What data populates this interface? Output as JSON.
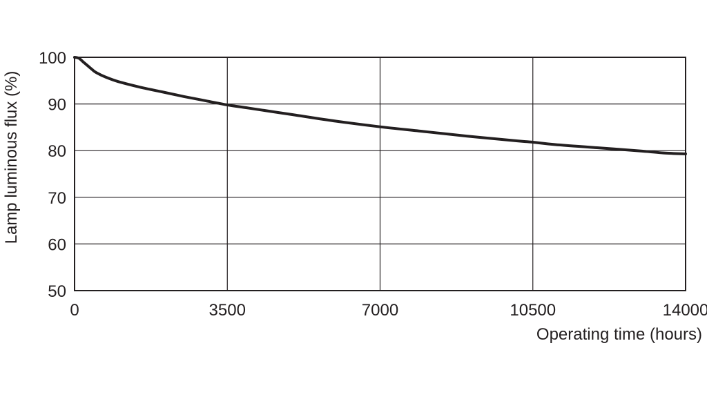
{
  "chart_data": {
    "type": "line",
    "title": "",
    "xlabel": "Operating time (hours)",
    "ylabel": "Lamp luminous flux (%)",
    "xlim": [
      0,
      14000
    ],
    "ylim": [
      50,
      100
    ],
    "x_ticks": [
      "0",
      "3500",
      "7000",
      "10500",
      "14000"
    ],
    "y_ticks": [
      "100",
      "90",
      "80",
      "70",
      "60",
      "50"
    ],
    "x_tick_values": [
      0,
      3500,
      7000,
      10500,
      14000
    ],
    "y_tick_values": [
      100,
      90,
      80,
      70,
      60,
      50
    ],
    "grid": true,
    "series": [
      {
        "color": "#231f20",
        "x": [
          0,
          100,
          200,
          300,
          400,
          500,
          700,
          1000,
          1500,
          2000,
          2500,
          3000,
          3500,
          4000,
          5000,
          6000,
          7000,
          8000,
          9000,
          10000,
          10500,
          11000,
          12000,
          13000,
          13500,
          14000
        ],
        "y": [
          100,
          99.8,
          99.0,
          98.2,
          97.4,
          96.7,
          95.8,
          94.8,
          93.6,
          92.6,
          91.6,
          90.7,
          89.8,
          89.1,
          87.7,
          86.3,
          85.1,
          84.1,
          83.1,
          82.2,
          81.8,
          81.3,
          80.6,
          79.9,
          79.5,
          79.3
        ]
      }
    ]
  }
}
